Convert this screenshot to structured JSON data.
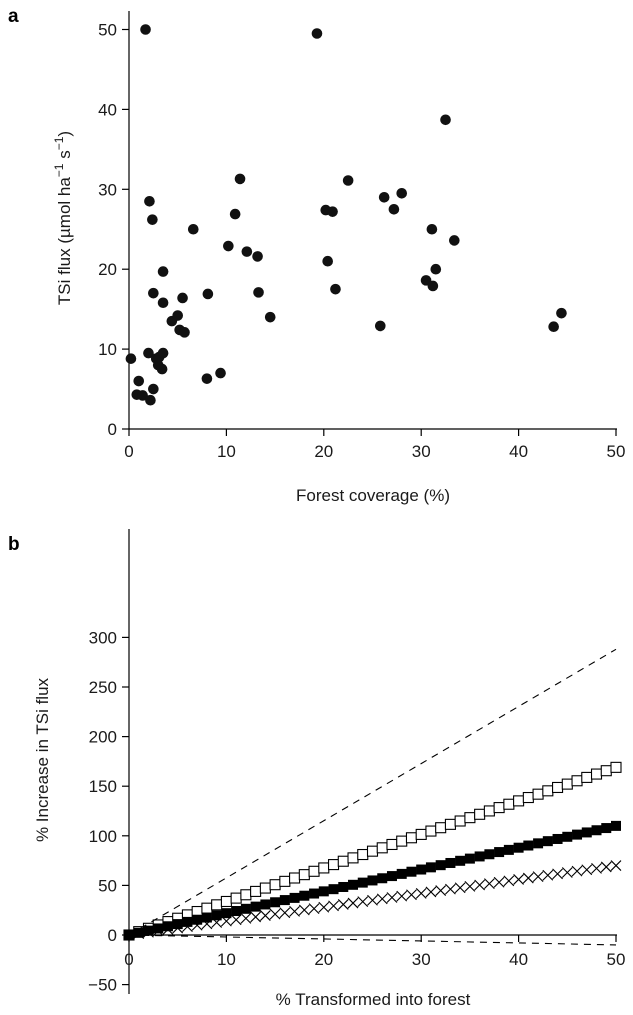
{
  "chart_data": [
    {
      "panel_label": "a",
      "type": "scatter",
      "xlabel": "Forest coverage (%)",
      "ylabel": "TSi flux (µmol ha",
      "ylabel_sup1": "−1",
      "ylabel_mid": " s",
      "ylabel_sup2": "−1",
      "ylabel_end": ")",
      "xlim": [
        0,
        50
      ],
      "ylim": [
        0,
        55
      ],
      "xticks": [
        0,
        10,
        20,
        30,
        40,
        50
      ],
      "yticks": [
        0,
        10,
        20,
        30,
        40,
        50
      ],
      "grid": false,
      "series": [
        {
          "marker": "filled-circle",
          "color": "#111111",
          "points": [
            [
              0.2,
              8.8
            ],
            [
              0.8,
              4.3
            ],
            [
              1.0,
              6.0
            ],
            [
              1.4,
              4.2
            ],
            [
              1.7,
              50.0
            ],
            [
              2.0,
              9.5
            ],
            [
              2.1,
              28.5
            ],
            [
              2.2,
              3.6
            ],
            [
              2.4,
              26.2
            ],
            [
              2.5,
              5.0
            ],
            [
              2.5,
              17.0
            ],
            [
              2.8,
              8.8
            ],
            [
              3.0,
              8.0
            ],
            [
              3.1,
              9.0
            ],
            [
              3.4,
              7.5
            ],
            [
              3.5,
              9.5
            ],
            [
              3.5,
              15.8
            ],
            [
              3.5,
              19.7
            ],
            [
              4.4,
              13.5
            ],
            [
              5.0,
              14.2
            ],
            [
              5.2,
              12.4
            ],
            [
              5.5,
              16.4
            ],
            [
              5.7,
              12.1
            ],
            [
              6.6,
              25.0
            ],
            [
              8.0,
              6.3
            ],
            [
              8.1,
              16.9
            ],
            [
              9.4,
              7.0
            ],
            [
              10.2,
              22.9
            ],
            [
              10.9,
              26.9
            ],
            [
              11.4,
              31.3
            ],
            [
              12.1,
              22.2
            ],
            [
              13.2,
              21.6
            ],
            [
              13.3,
              17.1
            ],
            [
              14.5,
              14.0
            ],
            [
              19.3,
              49.5
            ],
            [
              20.2,
              27.4
            ],
            [
              20.4,
              21.0
            ],
            [
              20.9,
              27.2
            ],
            [
              21.2,
              17.5
            ],
            [
              22.5,
              31.1
            ],
            [
              25.8,
              12.9
            ],
            [
              26.2,
              29.0
            ],
            [
              27.2,
              27.5
            ],
            [
              28.0,
              29.5
            ],
            [
              30.5,
              18.6
            ],
            [
              31.1,
              25.0
            ],
            [
              31.2,
              17.9
            ],
            [
              31.5,
              20.0
            ],
            [
              32.5,
              38.7
            ],
            [
              33.4,
              23.6
            ],
            [
              43.6,
              12.8
            ],
            [
              44.4,
              14.5
            ]
          ]
        }
      ]
    },
    {
      "panel_label": "b",
      "type": "line",
      "xlabel": "%  Transformed into forest",
      "ylabel": "% Increase in TSi flux",
      "xlim": [
        0,
        50
      ],
      "ylim": [
        -50,
        300
      ],
      "xticks": [
        0,
        10,
        20,
        30,
        40,
        50
      ],
      "yticks": [
        -50,
        0,
        50,
        100,
        150,
        200,
        250,
        300
      ],
      "grid": false,
      "marker_step": 1,
      "series": [
        {
          "marker": "open-square",
          "color": "#000000",
          "slope": 3.38,
          "line": "none"
        },
        {
          "marker": "filled-square",
          "color": "#000000",
          "slope": 2.2,
          "line": "none"
        },
        {
          "marker": "cross",
          "color": "#000000",
          "slope": 1.4,
          "line": "none"
        },
        {
          "marker": "none",
          "color": "#000000",
          "slope": 5.76,
          "line": "dashed"
        },
        {
          "marker": "none",
          "color": "#000000",
          "slope": -0.2,
          "line": "dashed"
        }
      ]
    }
  ]
}
